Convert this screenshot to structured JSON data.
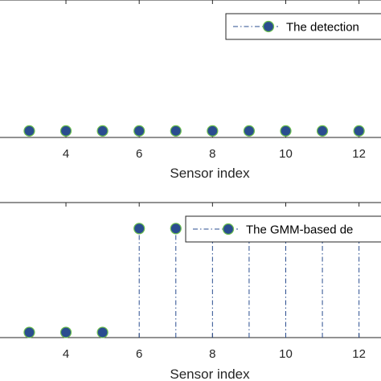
{
  "chart_data": [
    {
      "type": "stem",
      "xlabel": "Sensor index",
      "xticks": [
        4,
        6,
        8,
        10,
        12
      ],
      "xlim": [
        2.2,
        12.6
      ],
      "ylim": [
        -0.05,
        1.0
      ],
      "legend": {
        "placement": "top-right"
      },
      "series": [
        {
          "name": "The detection",
          "x": [
            3,
            4,
            5,
            6,
            7,
            8,
            9,
            10,
            11,
            12
          ],
          "y": [
            0,
            0,
            0,
            0,
            0,
            0,
            0,
            0,
            0,
            0
          ]
        }
      ]
    },
    {
      "type": "stem",
      "xlabel": "Sensor index",
      "xticks": [
        4,
        6,
        8,
        10,
        12
      ],
      "xlim": [
        2.2,
        12.6
      ],
      "ylim": [
        -0.05,
        1.25
      ],
      "legend": {
        "placement": "top-right"
      },
      "series": [
        {
          "name": "The GMM-based de",
          "x": [
            3,
            4,
            5,
            6,
            7,
            8,
            9,
            10,
            11,
            12
          ],
          "y": [
            0,
            0,
            0,
            1,
            1,
            1,
            1,
            1,
            1,
            1
          ]
        }
      ]
    }
  ],
  "colors": {
    "marker_fill": "#2a4d8f",
    "marker_edge": "#6dc04f",
    "stem": "#2a4d8f",
    "axis": "#262626"
  }
}
